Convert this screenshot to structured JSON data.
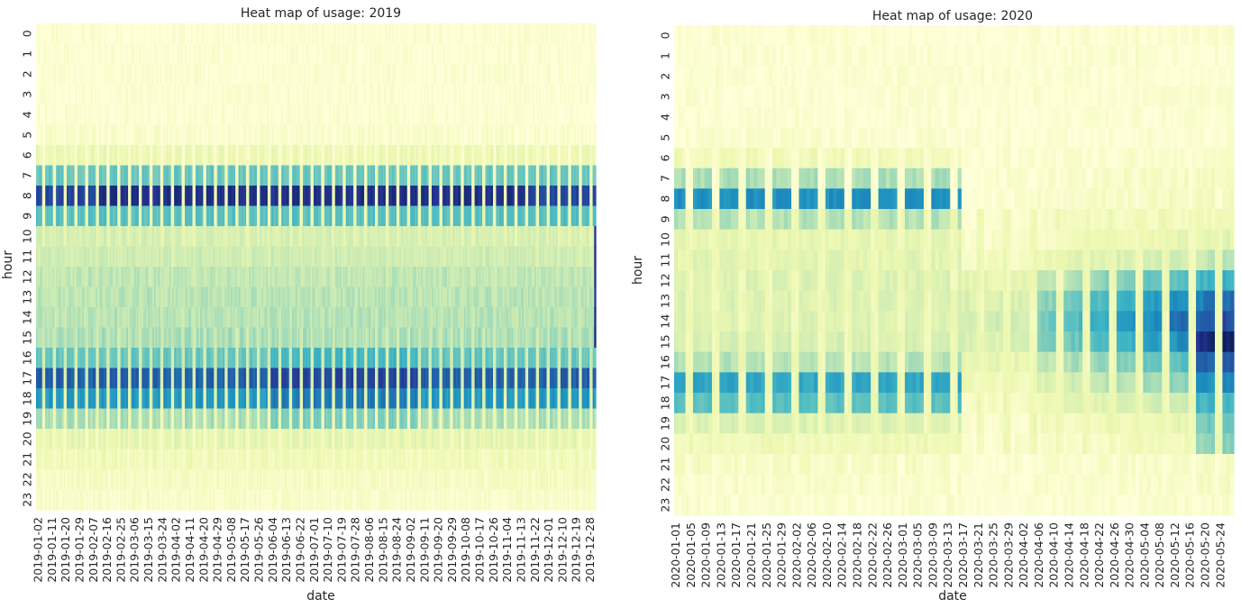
{
  "chart_data": [
    {
      "type": "heatmap",
      "title": "Heat map of usage: 2019",
      "xlabel": "date",
      "ylabel": "hour",
      "colormap": [
        "#ffffd9",
        "#edf8b1",
        "#c7e9b4",
        "#7fcdbb",
        "#41b6c4",
        "#1d91c0",
        "#225ea8",
        "#253494",
        "#081d58"
      ],
      "y_ticks": [
        "0",
        "1",
        "2",
        "3",
        "4",
        "5",
        "6",
        "7",
        "8",
        "9",
        "10",
        "11",
        "12",
        "13",
        "14",
        "15",
        "16",
        "17",
        "18",
        "19",
        "20",
        "21",
        "22",
        "23"
      ],
      "x_ticks": [
        "2019-01-02",
        "2019-01-11",
        "2019-01-20",
        "2019-01-29",
        "2019-02-07",
        "2019-02-16",
        "2019-02-25",
        "2019-03-06",
        "2019-03-15",
        "2019-03-24",
        "2019-04-02",
        "2019-04-11",
        "2019-04-20",
        "2019-04-29",
        "2019-05-08",
        "2019-05-17",
        "2019-05-26",
        "2019-06-04",
        "2019-06-13",
        "2019-06-22",
        "2019-07-01",
        "2019-07-10",
        "2019-07-19",
        "2019-07-28",
        "2019-08-06",
        "2019-08-15",
        "2019-08-24",
        "2019-09-02",
        "2019-09-11",
        "2019-09-20",
        "2019-09-29",
        "2019-10-08",
        "2019-10-17",
        "2019-10-26",
        "2019-11-04",
        "2019-11-13",
        "2019-11-22",
        "2019-12-01",
        "2019-12-10",
        "2019-12-19",
        "2019-12-28"
      ],
      "weekday_hourly_profile": [
        0.02,
        0.02,
        0.02,
        0.02,
        0.02,
        0.04,
        0.12,
        0.42,
        0.82,
        0.45,
        0.2,
        0.22,
        0.26,
        0.27,
        0.28,
        0.3,
        0.42,
        0.75,
        0.6,
        0.3,
        0.15,
        0.1,
        0.07,
        0.05
      ],
      "weekend_hourly_profile": [
        0.02,
        0.02,
        0.02,
        0.02,
        0.02,
        0.03,
        0.05,
        0.08,
        0.1,
        0.12,
        0.16,
        0.2,
        0.24,
        0.26,
        0.26,
        0.24,
        0.22,
        0.2,
        0.16,
        0.12,
        0.1,
        0.08,
        0.06,
        0.04
      ]
    },
    {
      "type": "heatmap",
      "title": "Heat map of usage: 2020",
      "xlabel": "date",
      "ylabel": "hour",
      "colormap": [
        "#ffffd9",
        "#edf8b1",
        "#c7e9b4",
        "#7fcdbb",
        "#41b6c4",
        "#1d91c0",
        "#225ea8",
        "#253494",
        "#081d58"
      ],
      "y_ticks": [
        "0",
        "1",
        "2",
        "3",
        "4",
        "5",
        "6",
        "7",
        "8",
        "9",
        "10",
        "11",
        "12",
        "13",
        "14",
        "15",
        "16",
        "17",
        "18",
        "19",
        "20",
        "21",
        "22",
        "23"
      ],
      "x_ticks": [
        "2020-01-01",
        "2020-01-05",
        "2020-01-09",
        "2020-01-13",
        "2020-01-17",
        "2020-01-21",
        "2020-01-25",
        "2020-01-29",
        "2020-02-02",
        "2020-02-06",
        "2020-02-10",
        "2020-02-14",
        "2020-02-18",
        "2020-02-22",
        "2020-02-26",
        "2020-03-01",
        "2020-03-05",
        "2020-03-09",
        "2020-03-13",
        "2020-03-17",
        "2020-03-21",
        "2020-03-25",
        "2020-03-29",
        "2020-04-02",
        "2020-04-06",
        "2020-04-10",
        "2020-04-14",
        "2020-04-18",
        "2020-04-22",
        "2020-04-26",
        "2020-04-30",
        "2020-05-04",
        "2020-05-08",
        "2020-05-12",
        "2020-05-16",
        "2020-05-20",
        "2020-05-24"
      ],
      "weekday_hourly_profile_before_2020-03-17": [
        0.02,
        0.02,
        0.02,
        0.02,
        0.02,
        0.03,
        0.1,
        0.3,
        0.62,
        0.28,
        0.14,
        0.16,
        0.18,
        0.18,
        0.18,
        0.2,
        0.28,
        0.55,
        0.45,
        0.18,
        0.1,
        0.07,
        0.05,
        0.03
      ],
      "weekday_hourly_profile_from_2020-03-17": [
        0.02,
        0.02,
        0.02,
        0.02,
        0.02,
        0.02,
        0.04,
        0.06,
        0.07,
        0.08,
        0.12,
        0.2,
        0.4,
        0.55,
        0.62,
        0.55,
        0.4,
        0.3,
        0.2,
        0.12,
        0.08,
        0.06,
        0.05,
        0.03
      ]
    }
  ]
}
